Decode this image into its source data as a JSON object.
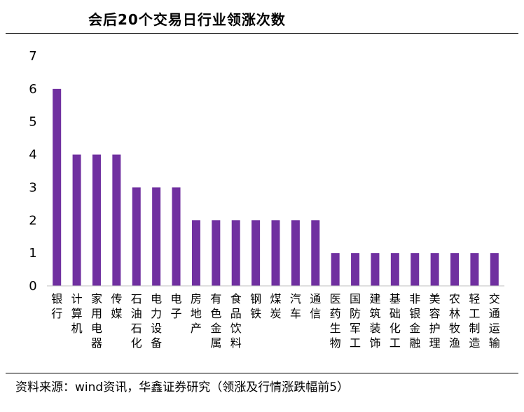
{
  "title": "会后20个交易日行业领涨次数",
  "source": "资料来源：wind资讯，华鑫证券研究（领涨及行情涨跌幅前5）",
  "colors": {
    "bar": "#7030a0",
    "axis": "#bfbfbf",
    "text": "#000000"
  },
  "chart_data": {
    "type": "bar",
    "title": "会后20个交易日行业领涨次数",
    "xlabel": "",
    "ylabel": "",
    "ylim": [
      0,
      7
    ],
    "yticks": [
      0,
      1,
      2,
      3,
      4,
      5,
      6,
      7
    ],
    "grid": false,
    "legend": "none",
    "categories": [
      "银行",
      "计算机",
      "家用电器",
      "传媒",
      "石油石化",
      "电力设备",
      "电子",
      "房地产",
      "有色金属",
      "食品饮料",
      "钢铁",
      "煤炭",
      "汽车",
      "通信",
      "医药生物",
      "国防军工",
      "建筑装饰",
      "基础化工",
      "非银金融",
      "美容护理",
      "农林牧渔",
      "轻工制造",
      "交通运输"
    ],
    "values": [
      6,
      4,
      4,
      4,
      3,
      3,
      3,
      2,
      2,
      2,
      2,
      2,
      2,
      2,
      1,
      1,
      1,
      1,
      1,
      1,
      1,
      1,
      1
    ]
  }
}
